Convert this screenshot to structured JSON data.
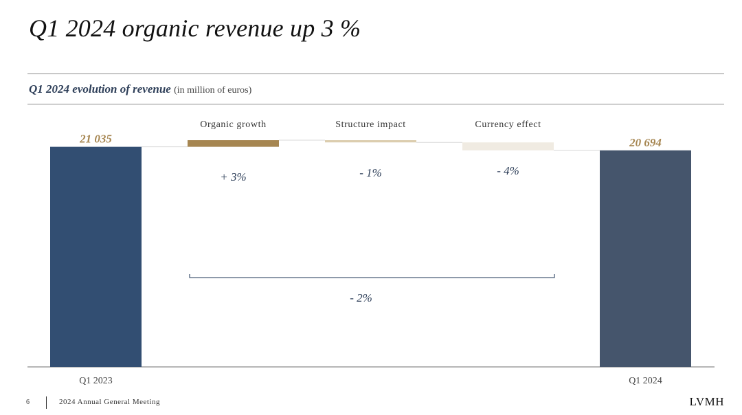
{
  "slide": {
    "title": "Q1 2024 organic revenue up 3 %",
    "subtitle_bold": "Q1 2024 evolution of revenue",
    "subtitle_unit": "(in million of euros)"
  },
  "footer": {
    "page_number": "6",
    "meeting": "2024 Annual General Meeting",
    "brand": "LVMH"
  },
  "colors": {
    "start_bar": "#324e72",
    "end_bar": "#45556c",
    "organic": "#a68651",
    "structure": "#dccdae",
    "currency": "#f0ebe2",
    "value_label": "#a68651",
    "pct_label": "#2d3e58"
  },
  "chart_data": {
    "type": "bar",
    "subtype": "waterfall",
    "categories": [
      "Q1 2023",
      "Organic growth",
      "Structure impact",
      "Currency effect",
      "Q1 2024"
    ],
    "values": [
      21035,
      631,
      -210,
      -762,
      20694
    ],
    "value_labels": [
      "21 035",
      "",
      "",
      "",
      "20 694"
    ],
    "axis_labels": [
      "Q1 2023",
      "",
      "",
      "",
      "Q1 2024"
    ],
    "step_labels": [
      "",
      "+ 3%",
      "- 1%",
      "- 4%",
      ""
    ],
    "step_headers": [
      "",
      "Organic growth",
      "Structure impact",
      "Currency effect",
      ""
    ],
    "bracket": {
      "from": "Organic growth",
      "to": "Currency effect",
      "label": "- 2%"
    },
    "ylim": [
      0,
      21800
    ],
    "grid": false,
    "legend": "none"
  }
}
